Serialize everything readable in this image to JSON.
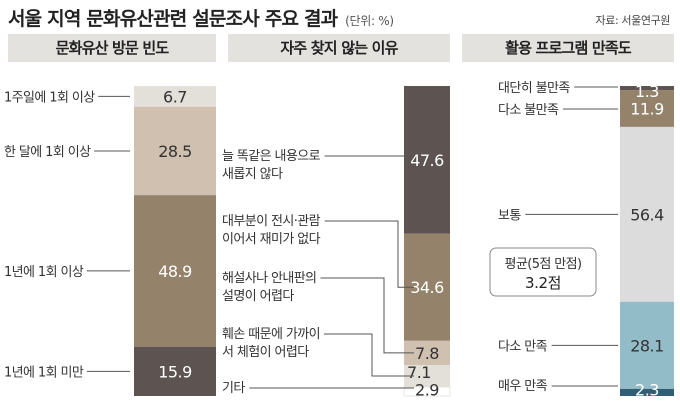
{
  "title": "서울 지역 문화유산관련 설문조사 주요 결과",
  "unit": "(단위: %)",
  "source": "자료: 서울연구원",
  "colors": {
    "dark": "#5d5350",
    "medium": "#94826b",
    "light": "#cfc0b0",
    "pale": "#e3dfd9",
    "blue": "#93bcc9",
    "navy": "#2f5e75",
    "gray": "#dcdcdc",
    "header_bg": "#e4e2df"
  },
  "panels": [
    {
      "header": "문화유산 방문 빈도"
    },
    {
      "header": "자주 찾지 않는 이유"
    },
    {
      "header": "활용 프로그램 만족도"
    }
  ],
  "average": {
    "label": "평균(5점 만점)",
    "value": "3.2점"
  },
  "chart_data": [
    {
      "type": "bar",
      "stacked": true,
      "title": "문화유산 방문 빈도",
      "categories": [
        "1주일에 1회 이상",
        "한 달에 1회 이상",
        "1년에 1회 이상",
        "1년에 1회 미만"
      ],
      "values": [
        6.7,
        28.5,
        48.9,
        15.9
      ],
      "colors": [
        "#e3dfd9",
        "#cfc0b0",
        "#94826b",
        "#5d5350"
      ],
      "labels": [
        "6.7",
        "28.5",
        "48.9",
        "15.9"
      ]
    },
    {
      "type": "bar",
      "stacked": true,
      "title": "자주 찾지 않는 이유",
      "categories": [
        "늘 똑같은 내용으로 새롭지 않다",
        "대부분이 전시·관람 이어서 재미가 없다",
        "해설사나 안내판의 설명이 어렵다",
        "훼손 때문에 가까이 서 체험이 어렵다",
        "기타"
      ],
      "category_lines": [
        [
          "늘 똑같은 내용으로",
          "새롭지 않다"
        ],
        [
          "대부분이 전시·관람",
          "이어서 재미가 없다"
        ],
        [
          "해설사나 안내판의",
          "설명이 어렵다"
        ],
        [
          "훼손 때문에 가까이",
          "서 체험이 어렵다"
        ],
        [
          "기타"
        ]
      ],
      "values": [
        47.6,
        34.6,
        7.8,
        7.1,
        2.9
      ],
      "colors": [
        "#5d5350",
        "#94826b",
        "#cfc0b0",
        "#e3dfd9",
        "#ffffff"
      ],
      "labels": [
        "47.6",
        "34.6",
        "7.8",
        "7.1",
        "2.9"
      ]
    },
    {
      "type": "bar",
      "stacked": true,
      "title": "활용 프로그램 만족도",
      "categories": [
        "대단히 불만족",
        "다소 불만족",
        "보통",
        "다소 만족",
        "매우 만족"
      ],
      "values": [
        1.3,
        11.9,
        56.4,
        28.1,
        2.3
      ],
      "colors": [
        "#5d5350",
        "#94826b",
        "#dcdcdc",
        "#93bcc9",
        "#2f5e75"
      ],
      "labels": [
        "1.3",
        "11.9",
        "56.4",
        "28.1",
        "2.3"
      ]
    }
  ]
}
